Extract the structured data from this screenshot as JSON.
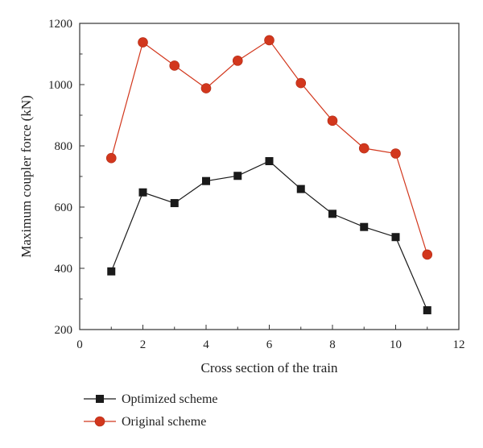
{
  "chart_data": {
    "type": "line",
    "title": "",
    "xlabel": "Cross section of the train",
    "ylabel": "Maximum coupler force (kN)",
    "xlim": [
      0,
      12
    ],
    "ylim": [
      200,
      1200
    ],
    "xticks": [
      0,
      2,
      4,
      6,
      8,
      10,
      12
    ],
    "yticks": [
      200,
      400,
      600,
      800,
      1000,
      1200
    ],
    "grid": false,
    "legend_position": "bottom-left",
    "series": [
      {
        "name": "Optimized scheme",
        "marker": "square",
        "color": "#1a1a1a",
        "x": [
          1,
          2,
          3,
          4,
          5,
          6,
          7,
          8,
          9,
          10,
          11
        ],
        "y": [
          390,
          648,
          613,
          685,
          702,
          750,
          659,
          578,
          535,
          502,
          263
        ]
      },
      {
        "name": "Original scheme",
        "marker": "circle",
        "color": "#d2371d",
        "x": [
          1,
          2,
          3,
          4,
          5,
          6,
          7,
          8,
          9,
          10,
          11
        ],
        "y": [
          760,
          1138,
          1062,
          988,
          1078,
          1145,
          1005,
          882,
          792,
          775,
          445
        ]
      }
    ]
  }
}
